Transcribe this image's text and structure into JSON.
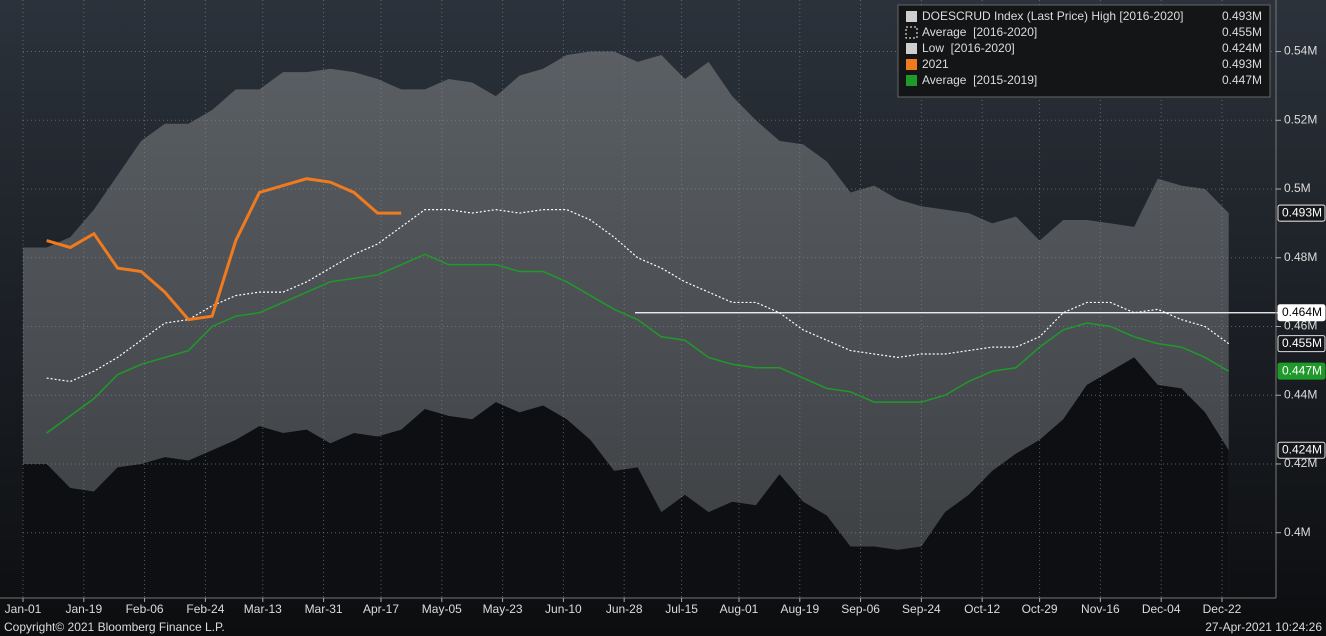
{
  "chart_data": {
    "type": "line",
    "x": [
      0,
      7,
      14,
      21,
      28,
      35,
      42,
      49,
      56,
      63,
      70,
      77,
      84,
      91,
      98,
      105,
      112,
      119,
      126,
      133,
      140,
      147,
      154,
      161,
      168,
      175,
      182,
      189,
      196,
      203,
      210,
      217,
      224,
      231,
      238,
      245,
      252,
      259,
      266,
      273,
      280,
      287,
      294,
      301,
      308,
      315,
      322,
      329,
      336,
      343,
      350,
      357
    ],
    "xlim": [
      0,
      371
    ],
    "xticks": [
      {
        "value": 0,
        "label": "Jan-01"
      },
      {
        "value": 18,
        "label": "Jan-19"
      },
      {
        "value": 36,
        "label": "Feb-06"
      },
      {
        "value": 54,
        "label": "Feb-24"
      },
      {
        "value": 71,
        "label": "Mar-13"
      },
      {
        "value": 89,
        "label": "Mar-31"
      },
      {
        "value": 106,
        "label": "Apr-17"
      },
      {
        "value": 124,
        "label": "May-05"
      },
      {
        "value": 142,
        "label": "May-23"
      },
      {
        "value": 160,
        "label": "Jun-10"
      },
      {
        "value": 178,
        "label": "Jun-28"
      },
      {
        "value": 195,
        "label": "Jul-15"
      },
      {
        "value": 212,
        "label": "Aug-01"
      },
      {
        "value": 230,
        "label": "Aug-19"
      },
      {
        "value": 248,
        "label": "Sep-06"
      },
      {
        "value": 266,
        "label": "Sep-24"
      },
      {
        "value": 284,
        "label": "Oct-12"
      },
      {
        "value": 301,
        "label": "Oct-29"
      },
      {
        "value": 319,
        "label": "Nov-16"
      },
      {
        "value": 337,
        "label": "Dec-04"
      },
      {
        "value": 355,
        "label": "Dec-22"
      }
    ],
    "ylim": [
      0.381,
      0.555
    ],
    "yticks": [
      {
        "value": 0.4,
        "label": "0.4M"
      },
      {
        "value": 0.42,
        "label": "0.42M"
      },
      {
        "value": 0.44,
        "label": "0.44M"
      },
      {
        "value": 0.46,
        "label": "0.46M"
      },
      {
        "value": 0.48,
        "label": "0.48M"
      },
      {
        "value": 0.5,
        "label": "0.5M"
      },
      {
        "value": 0.52,
        "label": "0.52M"
      },
      {
        "value": 0.54,
        "label": "0.54M"
      }
    ],
    "grid": true,
    "legend": "top-right",
    "series": [
      {
        "name": "DOESCRUD Index (Last Price) High [2016-2020]",
        "kind": "area-high",
        "color": "#cfcfcf",
        "last_value_label": "0.493M",
        "values": [
          0.483,
          0.483,
          0.486,
          0.494,
          0.504,
          0.514,
          0.519,
          0.519,
          0.523,
          0.529,
          0.529,
          0.534,
          0.534,
          0.535,
          0.534,
          0.532,
          0.529,
          0.529,
          0.532,
          0.531,
          0.527,
          0.533,
          0.535,
          0.539,
          0.54,
          0.54,
          0.537,
          0.539,
          0.532,
          0.537,
          0.527,
          0.52,
          0.514,
          0.513,
          0.508,
          0.499,
          0.501,
          0.497,
          0.495,
          0.494,
          0.493,
          0.49,
          0.492,
          0.485,
          0.491,
          0.491,
          0.49,
          0.489,
          0.503,
          0.501,
          0.5,
          0.493
        ]
      },
      {
        "name": "Average  [2016-2020]",
        "kind": "dotted-line",
        "color": "#ffffff",
        "last_value_label": "0.455M",
        "values": [
          null,
          0.445,
          0.444,
          0.447,
          0.451,
          0.456,
          0.461,
          0.462,
          0.466,
          0.469,
          0.47,
          0.47,
          0.473,
          0.477,
          0.481,
          0.484,
          0.489,
          0.494,
          0.494,
          0.493,
          0.494,
          0.493,
          0.494,
          0.494,
          0.491,
          0.486,
          0.48,
          0.477,
          0.473,
          0.47,
          0.467,
          0.467,
          0.464,
          0.459,
          0.456,
          0.453,
          0.452,
          0.451,
          0.452,
          0.452,
          0.453,
          0.454,
          0.454,
          0.457,
          0.464,
          0.467,
          0.467,
          0.464,
          0.465,
          0.462,
          0.46,
          0.455
        ]
      },
      {
        "name": "Low  [2016-2020]",
        "kind": "area-low",
        "color": "#cfcfcf",
        "last_value_label": "0.424M",
        "values": [
          0.42,
          0.42,
          0.413,
          0.412,
          0.419,
          0.42,
          0.422,
          0.421,
          0.424,
          0.427,
          0.431,
          0.429,
          0.43,
          0.426,
          0.429,
          0.428,
          0.43,
          0.436,
          0.434,
          0.433,
          0.438,
          0.435,
          0.437,
          0.433,
          0.427,
          0.418,
          0.419,
          0.406,
          0.411,
          0.406,
          0.409,
          0.408,
          0.417,
          0.409,
          0.405,
          0.396,
          0.396,
          0.395,
          0.396,
          0.406,
          0.411,
          0.418,
          0.423,
          0.427,
          0.433,
          0.443,
          0.447,
          0.451,
          0.443,
          0.442,
          0.435,
          0.424
        ]
      },
      {
        "name": "2021",
        "kind": "line",
        "color": "#f07a1e",
        "last_value_label": "0.493M",
        "values": [
          null,
          0.485,
          0.483,
          0.487,
          0.477,
          0.476,
          0.47,
          0.462,
          0.463,
          0.485,
          0.499,
          0.501,
          0.503,
          0.502,
          0.499,
          0.493,
          0.493,
          null,
          null,
          null,
          null,
          null,
          null,
          null,
          null,
          null,
          null,
          null,
          null,
          null,
          null,
          null,
          null,
          null,
          null,
          null,
          null,
          null,
          null,
          null,
          null,
          null,
          null,
          null,
          null,
          null,
          null,
          null,
          null,
          null,
          null,
          null
        ]
      },
      {
        "name": "Average  [2015-2019]",
        "kind": "line",
        "color": "#1f9a2a",
        "last_value_label": "0.447M",
        "values": [
          null,
          0.429,
          0.434,
          0.439,
          0.446,
          0.449,
          0.451,
          0.453,
          0.46,
          0.463,
          0.464,
          0.467,
          0.47,
          0.473,
          0.474,
          0.475,
          0.478,
          0.481,
          0.478,
          0.478,
          0.478,
          0.476,
          0.476,
          0.473,
          0.469,
          0.465,
          0.462,
          0.457,
          0.456,
          0.451,
          0.449,
          0.448,
          0.448,
          0.445,
          0.442,
          0.441,
          0.438,
          0.438,
          0.438,
          0.44,
          0.444,
          0.447,
          0.448,
          0.454,
          0.459,
          0.461,
          0.46,
          0.457,
          0.455,
          0.454,
          0.451,
          0.447
        ]
      }
    ],
    "reference_line": {
      "value": 0.464,
      "label": "0.464M"
    },
    "footer_left": "Copyright© 2021 Bloomberg Finance L.P.",
    "footer_right": "27-Apr-2021 10:24:26"
  }
}
